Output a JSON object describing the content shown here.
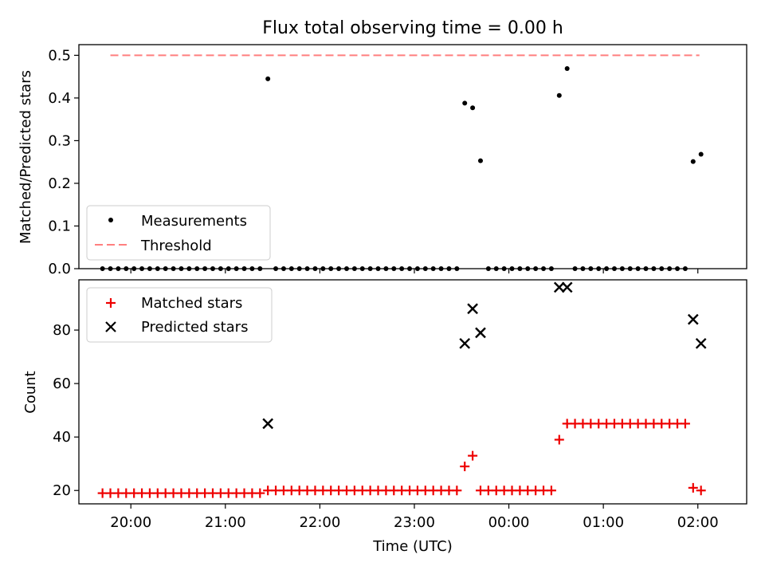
{
  "title": "Flux total observing time = 0.00 h",
  "colors": {
    "threshold": "#ff7f7f",
    "matched": "#ee0000",
    "predicted": "#000000",
    "measurement": "#000000"
  },
  "chart_data": [
    {
      "type": "scatter",
      "title": "Flux total observing time = 0.00 h",
      "xlabel": "",
      "ylabel": "Matched/Predicted stars",
      "xlim": [
        "19:27",
        "02:31"
      ],
      "ylim": [
        0,
        0.525
      ],
      "yticks": [
        "0.0",
        "0.1",
        "0.2",
        "0.3",
        "0.4",
        "0.5"
      ],
      "legend": {
        "position": "lower-left",
        "entries": [
          "Measurements",
          "Threshold"
        ]
      },
      "threshold": {
        "name": "Threshold",
        "value": 0.5,
        "x_range": [
          "19:47",
          "02:01"
        ]
      },
      "series": [
        {
          "name": "Measurements",
          "x": [
            "19:42",
            "19:47",
            "19:52",
            "19:57",
            "20:02",
            "20:07",
            "20:12",
            "20:17",
            "20:22",
            "20:27",
            "20:32",
            "20:37",
            "20:42",
            "20:47",
            "20:52",
            "20:57",
            "21:02",
            "21:07",
            "21:12",
            "21:17",
            "21:22",
            "21:27",
            "21:32",
            "21:37",
            "21:42",
            "21:47",
            "21:52",
            "21:57",
            "22:02",
            "22:07",
            "22:12",
            "22:17",
            "22:22",
            "22:27",
            "22:32",
            "22:37",
            "22:42",
            "22:47",
            "22:52",
            "22:57",
            "23:02",
            "23:07",
            "23:12",
            "23:17",
            "23:22",
            "23:27",
            "23:32",
            "23:37",
            "23:42",
            "23:47",
            "23:52",
            "23:57",
            "00:02",
            "00:07",
            "00:12",
            "00:17",
            "00:22",
            "00:27",
            "00:32",
            "00:37",
            "00:42",
            "00:47",
            "00:52",
            "00:57",
            "01:02",
            "01:07",
            "01:12",
            "01:17",
            "01:22",
            "01:27",
            "01:32",
            "01:37",
            "01:42",
            "01:47",
            "01:52",
            "01:57",
            "02:02"
          ],
          "y": [
            0,
            0,
            0,
            0,
            0,
            0,
            0,
            0,
            0,
            0,
            0,
            0,
            0,
            0,
            0,
            0,
            0,
            0,
            0,
            0,
            0,
            0.445,
            0,
            0,
            0,
            0,
            0,
            0,
            0,
            0,
            0,
            0,
            0,
            0,
            0,
            0,
            0,
            0,
            0,
            0,
            0,
            0,
            0,
            0,
            0,
            0,
            0.388,
            0.377,
            0.253,
            0,
            0,
            0,
            0,
            0,
            0,
            0,
            0,
            0,
            0.406,
            0.469,
            0,
            0,
            0,
            0,
            0,
            0,
            0,
            0,
            0,
            0,
            0,
            0,
            0,
            0,
            0,
            0.251,
            0.268
          ]
        }
      ]
    },
    {
      "type": "scatter",
      "title": "",
      "xlabel": "Time (UTC)",
      "ylabel": "Count",
      "xlim": [
        "19:27",
        "02:31"
      ],
      "ylim": [
        15,
        98.8
      ],
      "xticks": [
        "20:00",
        "21:00",
        "22:00",
        "23:00",
        "00:00",
        "01:00",
        "02:00"
      ],
      "yticks": [
        "20",
        "40",
        "60",
        "80"
      ],
      "legend": {
        "position": "upper-left",
        "entries": [
          "Matched stars",
          "Predicted stars"
        ]
      },
      "series": [
        {
          "name": "Matched stars",
          "marker": "plus",
          "x": [
            "19:42",
            "19:47",
            "19:52",
            "19:57",
            "20:02",
            "20:07",
            "20:12",
            "20:17",
            "20:22",
            "20:27",
            "20:32",
            "20:37",
            "20:42",
            "20:47",
            "20:52",
            "20:57",
            "21:02",
            "21:07",
            "21:12",
            "21:17",
            "21:22",
            "21:27",
            "21:32",
            "21:37",
            "21:42",
            "21:47",
            "21:52",
            "21:57",
            "22:02",
            "22:07",
            "22:12",
            "22:17",
            "22:22",
            "22:27",
            "22:32",
            "22:37",
            "22:42",
            "22:47",
            "22:52",
            "22:57",
            "23:02",
            "23:07",
            "23:12",
            "23:17",
            "23:22",
            "23:27",
            "23:32",
            "23:37",
            "23:42",
            "23:47",
            "23:52",
            "23:57",
            "00:02",
            "00:07",
            "00:12",
            "00:17",
            "00:22",
            "00:27",
            "00:32",
            "00:37",
            "00:42",
            "00:47",
            "00:52",
            "00:57",
            "01:02",
            "01:07",
            "01:12",
            "01:17",
            "01:22",
            "01:27",
            "01:32",
            "01:37",
            "01:42",
            "01:47",
            "01:52",
            "01:57",
            "02:02"
          ],
          "y": [
            19,
            19,
            19,
            19,
            19,
            19,
            19,
            19,
            19,
            19,
            19,
            19,
            19,
            19,
            19,
            19,
            19,
            19,
            19,
            19,
            19,
            20,
            20,
            20,
            20,
            20,
            20,
            20,
            20,
            20,
            20,
            20,
            20,
            20,
            20,
            20,
            20,
            20,
            20,
            20,
            20,
            20,
            20,
            20,
            20,
            20,
            29,
            33,
            20,
            20,
            20,
            20,
            20,
            20,
            20,
            20,
            20,
            20,
            39,
            45,
            45,
            45,
            45,
            45,
            45,
            45,
            45,
            45,
            45,
            45,
            45,
            45,
            45,
            45,
            45,
            21,
            20
          ]
        },
        {
          "name": "Predicted stars",
          "marker": "x",
          "x": [
            "21:27",
            "23:32",
            "23:37",
            "23:42",
            "00:32",
            "00:37",
            "01:57",
            "02:02"
          ],
          "y": [
            45,
            75,
            88,
            79,
            96,
            96,
            84,
            75
          ]
        }
      ]
    }
  ]
}
